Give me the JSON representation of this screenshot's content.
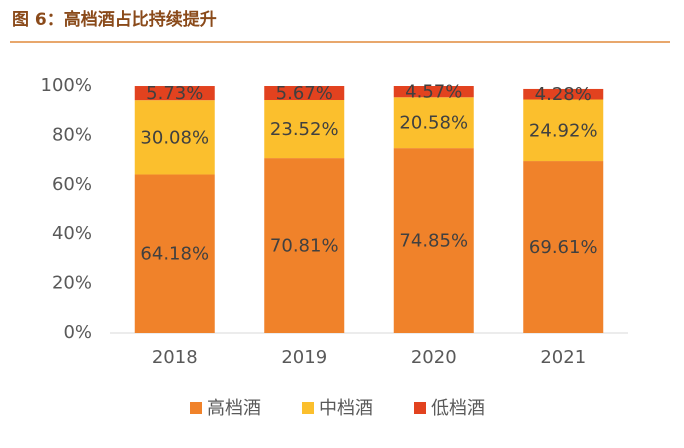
{
  "chart_data": {
    "type": "stacked_bar",
    "title": "图 6：高档酒占比持续提升",
    "categories": [
      "2018",
      "2019",
      "2020",
      "2021"
    ],
    "series": [
      {
        "name": "高档酒",
        "color": "#f0822a",
        "values": [
          64.18,
          70.81,
          74.85,
          69.61
        ],
        "value_labels": [
          "64.18%",
          "70.81%",
          "74.85%",
          "69.61%"
        ]
      },
      {
        "name": "中档酒",
        "color": "#fbbf2d",
        "values": [
          30.08,
          23.52,
          20.58,
          24.92
        ],
        "value_labels": [
          "30.08%",
          "23.52%",
          "20.58%",
          "24.92%"
        ]
      },
      {
        "name": "低档酒",
        "color": "#e2421f",
        "values": [
          5.73,
          5.67,
          4.57,
          4.28
        ],
        "value_labels": [
          "5.73%",
          "5.67%",
          "4.57%",
          "4.28%"
        ]
      }
    ],
    "ylim": [
      0,
      100
    ],
    "yticks": [
      {
        "value": 0,
        "label": "0%"
      },
      {
        "value": 20,
        "label": "20%"
      },
      {
        "value": 40,
        "label": "40%"
      },
      {
        "value": 60,
        "label": "60%"
      },
      {
        "value": 80,
        "label": "80%"
      },
      {
        "value": 100,
        "label": "100%"
      }
    ],
    "legend": "bottom"
  }
}
